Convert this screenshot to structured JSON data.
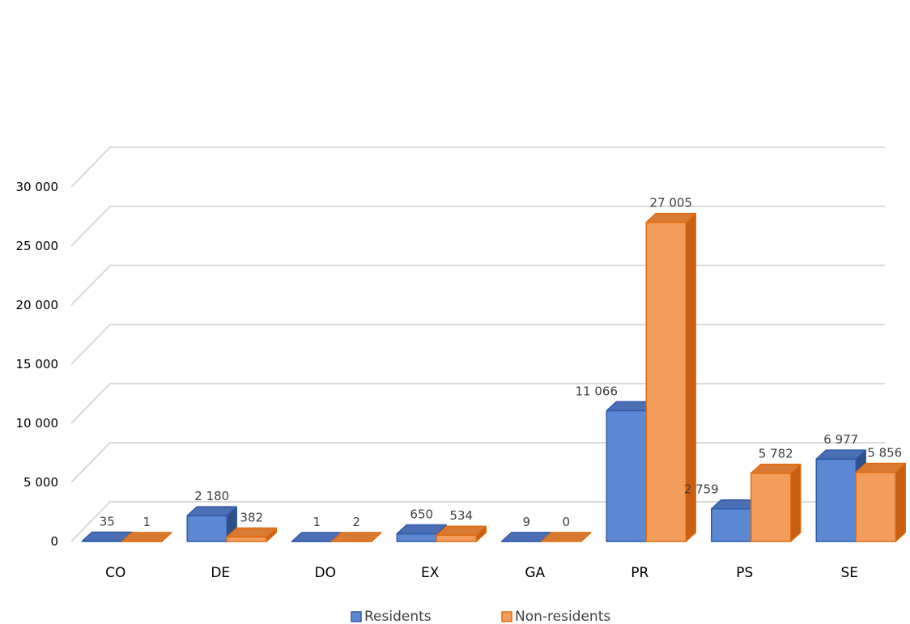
{
  "chart_data": {
    "type": "bar",
    "style": "3d-clustered-column",
    "categories": [
      "CO",
      "DE",
      "DO",
      "EX",
      "GA",
      "PR",
      "PS",
      "SE"
    ],
    "series": [
      {
        "name": "Residents",
        "values": [
          35,
          2180,
          1,
          650,
          9,
          11066,
          2759,
          6977
        ],
        "labels": [
          "35",
          "2 180",
          "1",
          "650",
          "9",
          "11 066",
          "2 759",
          "6 977"
        ]
      },
      {
        "name": "Non-residents",
        "values": [
          1,
          382,
          2,
          534,
          0,
          27005,
          5782,
          5856
        ],
        "labels": [
          "1",
          "382",
          "2",
          "534",
          "0",
          "27 005",
          "5 782",
          "5 856"
        ]
      }
    ],
    "ylim": [
      0,
      30000
    ],
    "y_ticks": [
      "0",
      "5 000",
      "10 000",
      "15 000",
      "20 000",
      "25 000",
      "30 000"
    ],
    "y_tick_values": [
      0,
      5000,
      10000,
      15000,
      20000,
      25000,
      30000
    ],
    "grid": true,
    "legend_position": "bottom",
    "colors": {
      "Residents": {
        "front": "#5b87d3",
        "top": "#4a6fb5",
        "side": "#2f4f86",
        "edge": "#2e5aa8"
      },
      "Non-residents": {
        "front": "#f29d5c",
        "top": "#d97a33",
        "side": "#c85f12",
        "edge": "#e06b10"
      },
      "grid": "#d9d9d9"
    }
  }
}
